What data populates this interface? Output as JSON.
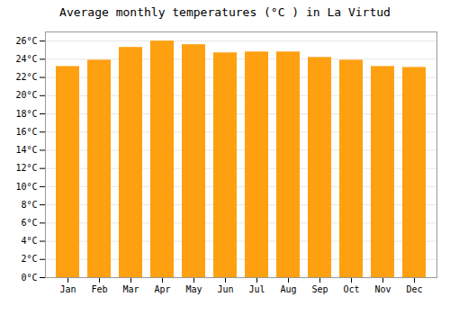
{
  "chart_data": {
    "type": "bar",
    "title": "Average monthly temperatures (°C ) in La Virtud",
    "categories": [
      "Jan",
      "Feb",
      "Mar",
      "Apr",
      "May",
      "Jun",
      "Jul",
      "Aug",
      "Sep",
      "Oct",
      "Nov",
      "Dec"
    ],
    "values": [
      23.2,
      23.9,
      25.3,
      26.0,
      25.6,
      24.7,
      24.8,
      24.8,
      24.2,
      23.9,
      23.2,
      23.1
    ],
    "color": "#FFA010",
    "ylim": [
      0,
      27
    ],
    "yticks": [
      {
        "value": 0,
        "label": "0°C"
      },
      {
        "value": 2,
        "label": "2°C"
      },
      {
        "value": 4,
        "label": "4°C"
      },
      {
        "value": 6,
        "label": "6°C"
      },
      {
        "value": 8,
        "label": "8°C"
      },
      {
        "value": 10,
        "label": "10°C"
      },
      {
        "value": 12,
        "label": "12°C"
      },
      {
        "value": 14,
        "label": "14°C"
      },
      {
        "value": 16,
        "label": "16°C"
      },
      {
        "value": 18,
        "label": "18°C"
      },
      {
        "value": 20,
        "label": "20°C"
      },
      {
        "value": 22,
        "label": "22°C"
      },
      {
        "value": 24,
        "label": "24°C"
      },
      {
        "value": 26,
        "label": "26°C"
      }
    ],
    "grid": true
  }
}
